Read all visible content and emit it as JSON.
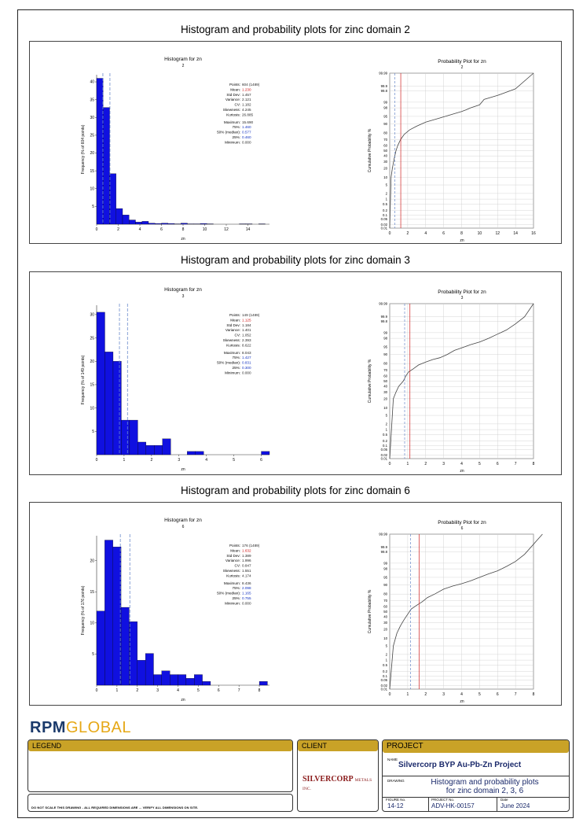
{
  "sections": [
    {
      "title": "Histogram and probability plots for zinc domain 2",
      "histogram": {
        "title": "Histogram for zn",
        "subtitle": "2",
        "ylabel": "Frequency (% of 604 points)",
        "xlabel": "zn",
        "xticks": [
          "0",
          "2",
          "4",
          "6",
          "8",
          "10",
          "12",
          "14"
        ],
        "yticks": [
          "5",
          "10",
          "15",
          "20",
          "25",
          "30",
          "35",
          "40"
        ],
        "stats_labels": [
          "Points:",
          "Mean:",
          "Std Dev:",
          "Variance:",
          "CV:",
          "Skewness:",
          "Kurtosis:",
          "Maximum:",
          "75%:",
          "50% (median):",
          "25%:",
          "Minimum:"
        ],
        "stats_values": [
          "604 (1489)",
          "1.230",
          "1.457",
          "2.121",
          "1.182",
          "4.245",
          "26.885",
          "15.690",
          "1.460",
          "0.577",
          "0.460",
          "0.000"
        ]
      },
      "probability": {
        "title": "Probability Plot for zn",
        "subtitle": "2",
        "ylabel": "Cumulative Probability %",
        "xlabel": "zn",
        "xticks": [
          "0",
          "2",
          "4",
          "6",
          "8",
          "10",
          "12",
          "14",
          "16"
        ],
        "yticks": [
          "99.99",
          "99.9",
          "99.8",
          "99",
          "98",
          "95",
          "90",
          "80",
          "70",
          "60",
          "50",
          "40",
          "30",
          "20",
          "10",
          "5",
          "2",
          "1",
          "0.5",
          "0.2",
          "0.1",
          "0.05",
          "0.02",
          "0.01"
        ]
      },
      "chart_data": {
        "type": "bar",
        "xlim": [
          0,
          16
        ],
        "ylim": [
          0,
          42
        ],
        "bin_width": 0.6,
        "values": [
          41,
          32.8,
          14.2,
          4.4,
          2.6,
          1.2,
          0.6,
          0.8,
          0.3,
          0.2,
          0.3,
          0.2,
          0.1,
          0.3,
          0.1,
          0.1,
          0.2,
          0.1,
          0,
          0,
          0,
          0,
          0.1,
          0.1,
          0,
          0.1
        ],
        "prob_x": [
          0,
          0.15,
          0.3,
          0.5,
          0.7,
          0.9,
          1.2,
          1.6,
          2.2,
          3,
          4,
          5.5,
          7,
          8,
          8.5,
          9,
          10,
          10.5,
          12,
          14,
          16
        ],
        "prob_p": [
          0.01,
          10,
          20,
          35,
          50,
          60,
          70,
          78,
          84,
          88,
          91.5,
          94,
          96,
          97,
          97.5,
          98,
          98.6,
          99.3,
          99.6,
          99.85,
          99.99
        ],
        "mean": 1.23,
        "median": 0.577
      }
    },
    {
      "title": "Histogram and probability plots for zinc domain 3",
      "histogram": {
        "title": "Histogram for zn",
        "subtitle": "3",
        "ylabel": "Frequency (% of 149 points)",
        "xlabel": "zn",
        "xticks": [
          "0",
          "1",
          "2",
          "3",
          "4",
          "5",
          "6"
        ],
        "yticks": [
          "5",
          "10",
          "15",
          "20",
          "25",
          "30"
        ],
        "stats_labels": [
          "Points:",
          "Mean:",
          "Std Dev:",
          "Variance:",
          "CV:",
          "Skewness:",
          "Kurtosis:",
          "Maximum:",
          "75%:",
          "50% (median):",
          "25%:",
          "Minimum:"
        ],
        "stats_values": [
          "149 (1489)",
          "1.125",
          "1.184",
          "1.401",
          "1.052",
          "2.393",
          "8.622",
          "8.043",
          "1.427",
          "0.831",
          "0.300",
          "0.000"
        ]
      },
      "probability": {
        "title": "Probability Plot for zn",
        "subtitle": "3",
        "ylabel": "Cumulative Probability %",
        "xlabel": "zn",
        "xticks": [
          "0",
          "1",
          "2",
          "3",
          "4",
          "5",
          "6",
          "7",
          "8"
        ],
        "yticks": [
          "99.99",
          "99.9",
          "99.8",
          "99",
          "98",
          "95",
          "90",
          "80",
          "70",
          "60",
          "50",
          "40",
          "30",
          "20",
          "10",
          "5",
          "2",
          "1",
          "0.5",
          "0.2",
          "0.1",
          "0.05",
          "0.02",
          "0.01"
        ]
      },
      "chart_data": {
        "type": "bar",
        "xlim": [
          0,
          6.3
        ],
        "ylim": [
          0,
          32
        ],
        "bin_width": 0.3,
        "values": [
          30.5,
          22,
          20,
          7.4,
          7.4,
          2.7,
          2,
          2,
          3.4,
          0,
          0,
          0.7,
          0.7,
          0,
          0,
          0,
          0,
          0,
          0,
          0,
          0.7
        ],
        "prob_x": [
          0,
          0.2,
          0.35,
          0.5,
          0.75,
          0.9,
          1.05,
          1.3,
          1.6,
          2,
          2.4,
          2.8,
          3.2,
          3.6,
          4,
          4.5,
          5,
          5.5,
          6,
          6.5,
          7,
          7.5,
          8
        ],
        "prob_p": [
          0.01,
          20,
          30,
          40,
          50,
          60,
          67,
          72,
          78,
          82,
          85,
          87,
          90,
          93,
          94.5,
          96,
          97,
          98,
          98.8,
          99.3,
          99.7,
          99.9,
          99.99
        ],
        "mean": 1.125,
        "median": 0.831
      }
    },
    {
      "title": "Histogram and probability plots for zinc domain 6",
      "histogram": {
        "title": "Histogram for zn",
        "subtitle": "6",
        "ylabel": "Frequency (% of 176 points)",
        "xlabel": "zn",
        "xticks": [
          "0",
          "1",
          "2",
          "3",
          "4",
          "5",
          "6",
          "7",
          "8"
        ],
        "yticks": [
          "5",
          "10",
          "15",
          "20"
        ],
        "stats_labels": [
          "Points:",
          "Mean:",
          "Std Dev:",
          "Variance:",
          "CV:",
          "Skewness:",
          "Kurtosis:",
          "Maximum:",
          "75%:",
          "50% (median):",
          "25%:",
          "Minimum:"
        ],
        "stats_values": [
          "176 (1489)",
          "1.632",
          "1.389",
          "1.996",
          "0.847",
          "1.551",
          "4.174",
          "8.436",
          "2.098",
          "1.165",
          "0.755",
          "0.000"
        ]
      },
      "probability": {
        "title": "Probability Plot for zn",
        "subtitle": "6",
        "ylabel": "Cumulative Probability %",
        "xlabel": "zn",
        "xticks": [
          "0",
          "1",
          "2",
          "3",
          "4",
          "5",
          "6",
          "7",
          "8"
        ],
        "yticks": [
          "99.99",
          "99.9",
          "99.8",
          "99",
          "98",
          "95",
          "90",
          "80",
          "70",
          "60",
          "50",
          "40",
          "30",
          "20",
          "10",
          "5",
          "2",
          "1",
          "0.5",
          "0.2",
          "0.1",
          "0.05",
          "0.02",
          "0.01"
        ]
      },
      "chart_data": {
        "type": "bar",
        "xlim": [
          0,
          8.5
        ],
        "ylim": [
          0,
          24
        ],
        "bin_width": 0.4,
        "values": [
          11.9,
          23.3,
          22.2,
          12.5,
          10.2,
          4,
          5.1,
          1.7,
          2.3,
          1.7,
          1.7,
          1.1,
          1.7,
          0.6,
          0,
          0,
          0,
          0,
          0,
          0,
          0.6
        ],
        "prob_x": [
          0,
          0.2,
          0.4,
          0.6,
          0.8,
          1,
          1.2,
          1.5,
          1.8,
          2.1,
          2.5,
          3,
          3.5,
          4,
          4.5,
          5,
          5.5,
          6,
          6.5,
          7,
          7.5,
          8.5
        ],
        "prob_p": [
          0.01,
          5,
          15,
          25,
          35,
          45,
          55,
          62,
          68,
          75,
          80,
          86,
          89,
          91,
          93,
          95,
          96.5,
          97.5,
          98.5,
          99.2,
          99.7,
          99.99
        ],
        "mean": 1.632,
        "median": 1.165
      }
    }
  ],
  "footer": {
    "logo_a": "RPM",
    "logo_b": "GLOBAL",
    "legend_label": "LEGEND",
    "disclaimer": "DO NOT SCALE THIS DRAWING - ALL REQUIRED DIMENSIONS ARE ... VERIFY ALL DIMENSIONS ON SITE.",
    "client_label": "CLIENT",
    "client_logo_a": "SILVERCORP",
    "client_logo_b": "METALS INC.",
    "project_label": "PROJECT",
    "name_label": "NAME",
    "project_name": "Silvercorp BYP Au-Pb-Zn Project",
    "drawing_label": "DRAWING",
    "drawing_title_1": "Histogram and probability plots",
    "drawing_title_2": "for zinc domain 2, 3, 6",
    "figure_label": "FIGURE No.",
    "figure_no": "14-12",
    "projno_label": "PROJECT No.",
    "project_no": "ADV-HK-00157",
    "date_label": "Date",
    "date": "June 2024"
  }
}
